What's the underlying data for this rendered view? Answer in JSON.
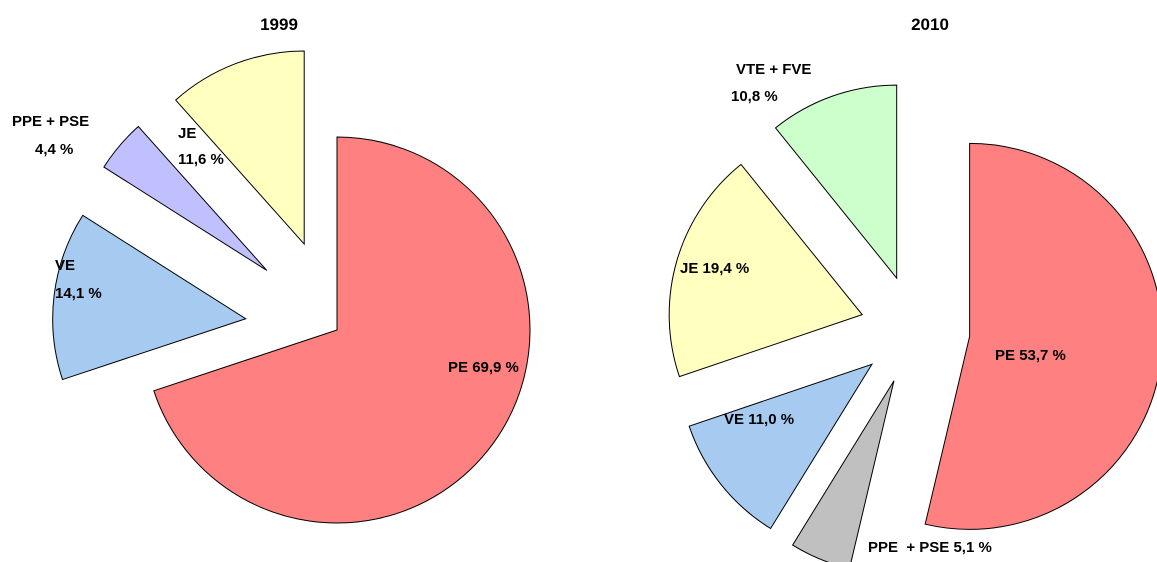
{
  "chart_data": [
    {
      "type": "pie",
      "title": "1999",
      "categories": [
        "PE",
        "VE",
        "PPE + PSE",
        "JE"
      ],
      "values": [
        69.9,
        14.1,
        4.4,
        11.6
      ],
      "value_labels": [
        "69,9 %",
        "14,1 %",
        "4,4 %",
        "11,6 %"
      ],
      "colors": [
        "#ff8080",
        "#a6caf0",
        "#c0c0ff",
        "#ffffc0"
      ]
    },
    {
      "type": "pie",
      "title": "2010",
      "categories": [
        "PE",
        "PPE  + PSE",
        "VE",
        "JE",
        "VTE + FVE"
      ],
      "values": [
        53.7,
        5.1,
        11.0,
        19.4,
        10.8
      ],
      "value_labels": [
        "53,7 %",
        "5,1 %",
        "11,0 %",
        "19,4 %",
        "10,8 %"
      ],
      "colors": [
        "#ff8080",
        "#c0c0c0",
        "#a6caf0",
        "#ffffc0",
        "#ccffcc"
      ]
    }
  ]
}
